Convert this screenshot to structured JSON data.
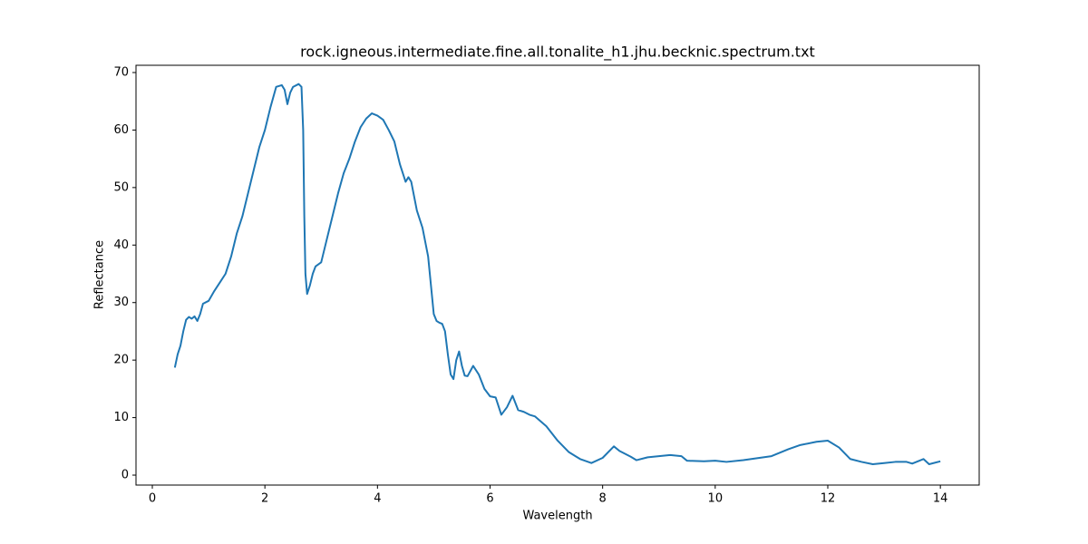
{
  "chart_data": {
    "type": "line",
    "title": "rock.igneous.intermediate.fine.all.tonalite_h1.jhu.becknic.spectrum.txt",
    "x_label": "Wavelength",
    "y_label": "Reflectance",
    "x": [
      0.4,
      0.45,
      0.5,
      0.55,
      0.6,
      0.65,
      0.7,
      0.75,
      0.8,
      0.85,
      0.9,
      1.0,
      1.1,
      1.2,
      1.3,
      1.4,
      1.5,
      1.6,
      1.7,
      1.8,
      1.9,
      2.0,
      2.1,
      2.2,
      2.3,
      2.35,
      2.4,
      2.45,
      2.5,
      2.6,
      2.65,
      2.68,
      2.7,
      2.72,
      2.75,
      2.8,
      2.85,
      2.9,
      3.0,
      3.1,
      3.2,
      3.3,
      3.4,
      3.5,
      3.6,
      3.7,
      3.8,
      3.9,
      4.0,
      4.1,
      4.2,
      4.3,
      4.4,
      4.5,
      4.55,
      4.6,
      4.7,
      4.8,
      4.9,
      4.95,
      5.0,
      5.05,
      5.1,
      5.15,
      5.2,
      5.25,
      5.3,
      5.35,
      5.4,
      5.45,
      5.5,
      5.55,
      5.6,
      5.7,
      5.8,
      5.9,
      6.0,
      6.1,
      6.2,
      6.3,
      6.4,
      6.5,
      6.6,
      6.7,
      6.8,
      7.0,
      7.2,
      7.4,
      7.6,
      7.8,
      8.0,
      8.2,
      8.3,
      8.5,
      8.6,
      8.8,
      9.0,
      9.2,
      9.4,
      9.5,
      9.8,
      10.0,
      10.2,
      10.5,
      11.0,
      11.3,
      11.5,
      11.8,
      12.0,
      12.2,
      12.4,
      12.6,
      12.8,
      13.0,
      13.2,
      13.4,
      13.5,
      13.6,
      13.7,
      13.8,
      14.0
    ],
    "values": [
      18.7,
      21,
      22.5,
      25,
      27,
      27.5,
      27.2,
      27.6,
      26.8,
      28,
      29.8,
      30.3,
      32,
      33.5,
      35,
      38,
      42,
      45,
      49,
      53,
      57,
      60,
      64,
      67.5,
      67.8,
      67,
      64.5,
      66.5,
      67.5,
      68,
      67.5,
      60,
      45,
      35,
      31.5,
      33,
      35,
      36.3,
      37,
      41,
      45,
      49,
      52.5,
      55,
      58,
      60.5,
      62,
      62.9,
      62.5,
      61.8,
      60,
      58,
      54,
      51,
      51.8,
      51,
      46,
      43,
      38,
      33,
      28,
      26.8,
      26.5,
      26.3,
      25,
      21,
      17.5,
      16.7,
      20,
      21.5,
      19,
      17.3,
      17.2,
      19,
      17.5,
      15,
      13.7,
      13.5,
      10.5,
      11.8,
      13.8,
      11.3,
      11,
      10.5,
      10.2,
      8.5,
      6,
      4,
      2.8,
      2.1,
      3,
      5,
      4.2,
      3.2,
      2.6,
      3.1,
      3.3,
      3.5,
      3.3,
      2.5,
      2.4,
      2.5,
      2.3,
      2.6,
      3.3,
      4.5,
      5.2,
      5.8,
      6,
      4.8,
      2.8,
      2.3,
      1.9,
      2.1,
      2.3,
      2.3,
      2.0,
      2.4,
      2.8,
      1.9,
      2.4
    ],
    "color": "#1f77b4",
    "xlim": [
      -0.29,
      14.69
    ],
    "ylim": [
      -1.73,
      71.26
    ],
    "xticks": [
      0,
      2,
      4,
      6,
      8,
      10,
      12,
      14
    ],
    "yticks": [
      0,
      10,
      20,
      30,
      40,
      50,
      60,
      70
    ]
  }
}
